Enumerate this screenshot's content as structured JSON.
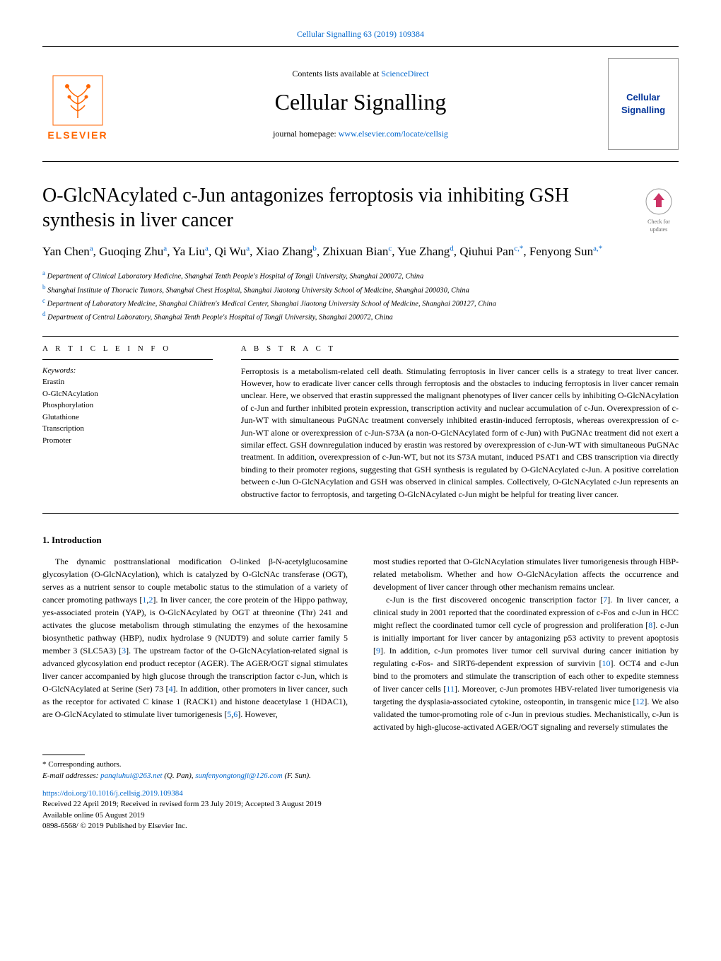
{
  "header": {
    "citation": "Cellular Signalling 63 (2019) 109384",
    "contents_prefix": "Contents lists available at ",
    "contents_link": "ScienceDirect",
    "journal_title": "Cellular Signalling",
    "homepage_prefix": "journal homepage: ",
    "homepage_link": "www.elsevier.com/locate/cellsig",
    "publisher": "ELSEVIER",
    "cover_line1": "Cellular",
    "cover_line2": "Signalling"
  },
  "article": {
    "title": "O-GlcNAcylated c-Jun antagonizes ferroptosis via inhibiting GSH synthesis in liver cancer",
    "check_updates": "Check for updates",
    "authors_html": "Yan Chen<sup class='aff-sup'>a</sup>, Guoqing Zhu<sup class='aff-sup'>a</sup>, Ya Liu<sup class='aff-sup'>a</sup>, Qi Wu<sup class='aff-sup'>a</sup>, Xiao Zhang<sup class='aff-sup'>b</sup>, Zhixuan Bian<sup class='aff-sup'>c</sup>, Yue Zhang<sup class='aff-sup'>d</sup>, Qiuhui Pan<sup class='aff-sup'>c,*</sup>, Fenyong Sun<sup class='aff-sup'>a,*</sup>",
    "affiliations": [
      {
        "sup": "a",
        "text": "Department of Clinical Laboratory Medicine, Shanghai Tenth People's Hospital of Tongji University, Shanghai 200072, China"
      },
      {
        "sup": "b",
        "text": "Shanghai Institute of Thoracic Tumors, Shanghai Chest Hospital, Shanghai Jiaotong University School of Medicine, Shanghai 200030, China"
      },
      {
        "sup": "c",
        "text": "Department of Laboratory Medicine, Shanghai Children's Medical Center, Shanghai Jiaotong University School of Medicine, Shanghai 200127, China"
      },
      {
        "sup": "d",
        "text": "Department of Central Laboratory, Shanghai Tenth People's Hospital of Tongji University, Shanghai 200072, China"
      }
    ]
  },
  "info": {
    "heading": "A R T I C L E  I N F O",
    "keywords_label": "Keywords:",
    "keywords": [
      "Erastin",
      "O-GlcNAcylation",
      "Phosphorylation",
      "Glutathione",
      "Transcription",
      "Promoter"
    ]
  },
  "abstract": {
    "heading": "A B S T R A C T",
    "text": "Ferroptosis is a metabolism-related cell death. Stimulating ferroptosis in liver cancer cells is a strategy to treat liver cancer. However, how to eradicate liver cancer cells through ferroptosis and the obstacles to inducing ferroptosis in liver cancer remain unclear. Here, we observed that erastin suppressed the malignant phenotypes of liver cancer cells by inhibiting O-GlcNAcylation of c-Jun and further inhibited protein expression, transcription activity and nuclear accumulation of c-Jun. Overexpression of c-Jun-WT with simultaneous PuGNAc treatment conversely inhibited erastin-induced ferroptosis, whereas overexpression of c-Jun-WT alone or overexpression of c-Jun-S73A (a non-O-GlcNAcylated form of c-Jun) with PuGNAc treatment did not exert a similar effect. GSH downregulation induced by erastin was restored by overexpression of c-Jun-WT with simultaneous PuGNAc treatment. In addition, overexpression of c-Jun-WT, but not its S73A mutant, induced PSAT1 and CBS transcription via directly binding to their promoter regions, suggesting that GSH synthesis is regulated by O-GlcNAcylated c-Jun. A positive correlation between c-Jun O-GlcNAcylation and GSH was observed in clinical samples. Collectively, O-GlcNAcylated c-Jun represents an obstructive factor to ferroptosis, and targeting O-GlcNAcylated c-Jun might be helpful for treating liver cancer."
  },
  "intro": {
    "heading": "1. Introduction",
    "col1": "The dynamic posttranslational modification O-linked β-N-acetylglucosamine glycosylation (O-GlcNAcylation), which is catalyzed by O-GlcNAc transferase (OGT), serves as a nutrient sensor to couple metabolic status to the stimulation of a variety of cancer promoting pathways [<span class='ref-link'>1</span>,<span class='ref-link'>2</span>]. In liver cancer, the core protein of the Hippo pathway, yes-associated protein (YAP), is O-GlcNAcylated by OGT at threonine (Thr) 241 and activates the glucose metabolism through stimulating the enzymes of the hexosamine biosynthetic pathway (HBP), nudix hydrolase 9 (NUDT9) and solute carrier family 5 member 3 (SLC5A3) [<span class='ref-link'>3</span>]. The upstream factor of the O-GlcNAcylation-related signal is advanced glycosylation end product receptor (AGER). The AGER/OGT signal stimulates liver cancer accompanied by high glucose through the transcription factor c-Jun, which is O-GlcNAcylated at Serine (Ser) 73 [<span class='ref-link'>4</span>]. In addition, other promoters in liver cancer, such as the receptor for activated C kinase 1 (RACK1) and histone deacetylase 1 (HDAC1), are O-GlcNAcylated to stimulate liver tumorigenesis [<span class='ref-link'>5</span>,<span class='ref-link'>6</span>]. However,",
    "col2_p1": "most studies reported that O-GlcNAcylation stimulates liver tumorigenesis through HBP-related metabolism. Whether and how O-GlcNAcylation affects the occurrence and development of liver cancer through other mechanism remains unclear.",
    "col2_p2": "c-Jun is the first discovered oncogenic transcription factor [<span class='ref-link'>7</span>]. In liver cancer, a clinical study in 2001 reported that the coordinated expression of c-Fos and c-Jun in HCC might reflect the coordinated tumor cell cycle of progression and proliferation [<span class='ref-link'>8</span>]. c-Jun is initially important for liver cancer by antagonizing p53 activity to prevent apoptosis [<span class='ref-link'>9</span>]. In addition, c-Jun promotes liver tumor cell survival during cancer initiation by regulating c-Fos- and SIRT6-dependent expression of survivin [<span class='ref-link'>10</span>]. OCT4 and c-Jun bind to the promoters and stimulate the transcription of each other to expedite stemness of liver cancer cells [<span class='ref-link'>11</span>]. Moreover, c-Jun promotes HBV-related liver tumorigenesis via targeting the dysplasia-associated cytokine, osteopontin, in transgenic mice [<span class='ref-link'>12</span>]. We also validated the tumor-promoting role of c-Jun in previous studies. Mechanistically, c-Jun is activated by high-glucose-activated AGER/OGT signaling and reversely stimulates the"
  },
  "footer": {
    "corresponding_label": "* Corresponding authors.",
    "email_label": "E-mail addresses: ",
    "email1": "panqiuhui@263.net",
    "email1_name": " (Q. Pan), ",
    "email2": "sunfenyongtongji@126.com",
    "email2_name": " (F. Sun).",
    "doi": "https://doi.org/10.1016/j.cellsig.2019.109384",
    "received": "Received 22 April 2019; Received in revised form 23 July 2019; Accepted 3 August 2019",
    "available": "Available online 05 August 2019",
    "copyright": "0898-6568/ © 2019 Published by Elsevier Inc."
  },
  "colors": {
    "link": "#0066cc",
    "publisher": "#ff6600",
    "cover_text": "#003399"
  }
}
